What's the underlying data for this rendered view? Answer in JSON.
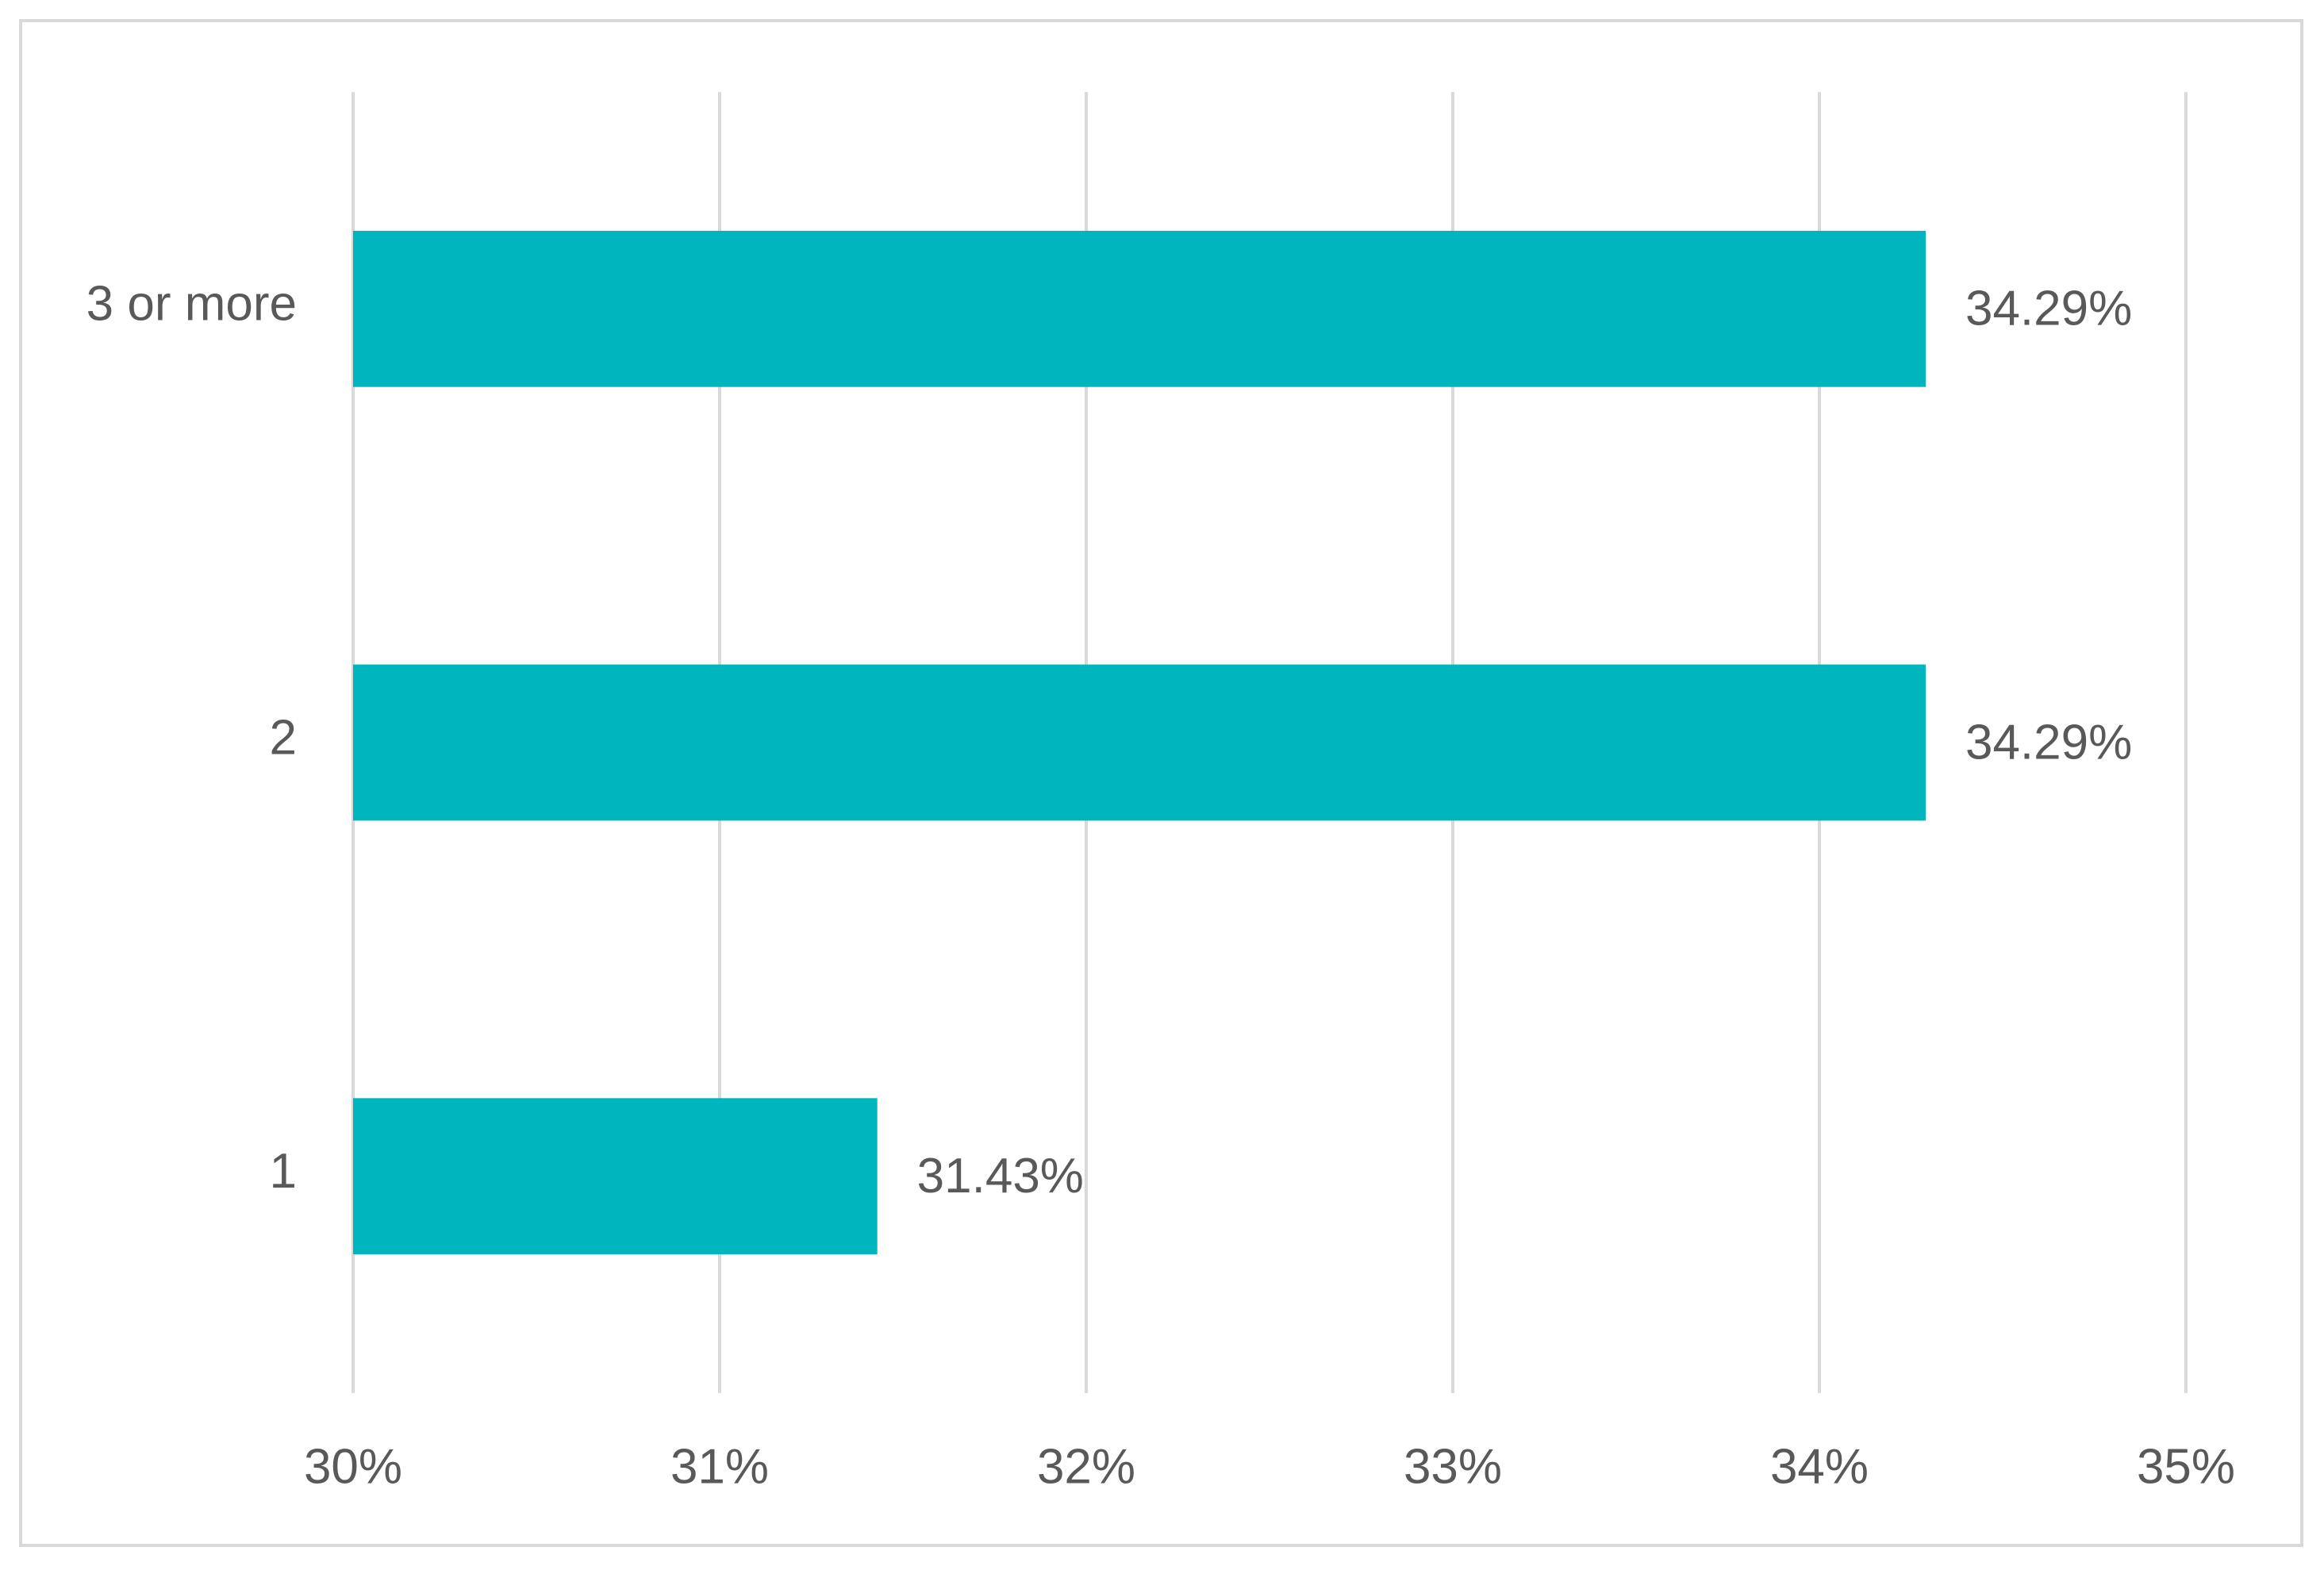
{
  "chart_data": {
    "type": "bar",
    "orientation": "horizontal",
    "categories": [
      "1",
      "2",
      "3 or more"
    ],
    "values": [
      31.43,
      34.29,
      34.29
    ],
    "value_labels": [
      "31.43%",
      "34.29%",
      "34.29%"
    ],
    "color": "#00b5bd",
    "xlim": [
      30,
      35
    ],
    "xticks": [
      {
        "value": 30,
        "label": "30%"
      },
      {
        "value": 31,
        "label": "31%"
      },
      {
        "value": 32,
        "label": "32%"
      },
      {
        "value": 33,
        "label": "33%"
      },
      {
        "value": 34,
        "label": "34%"
      },
      {
        "value": 35,
        "label": "35%"
      }
    ],
    "grid": true
  }
}
